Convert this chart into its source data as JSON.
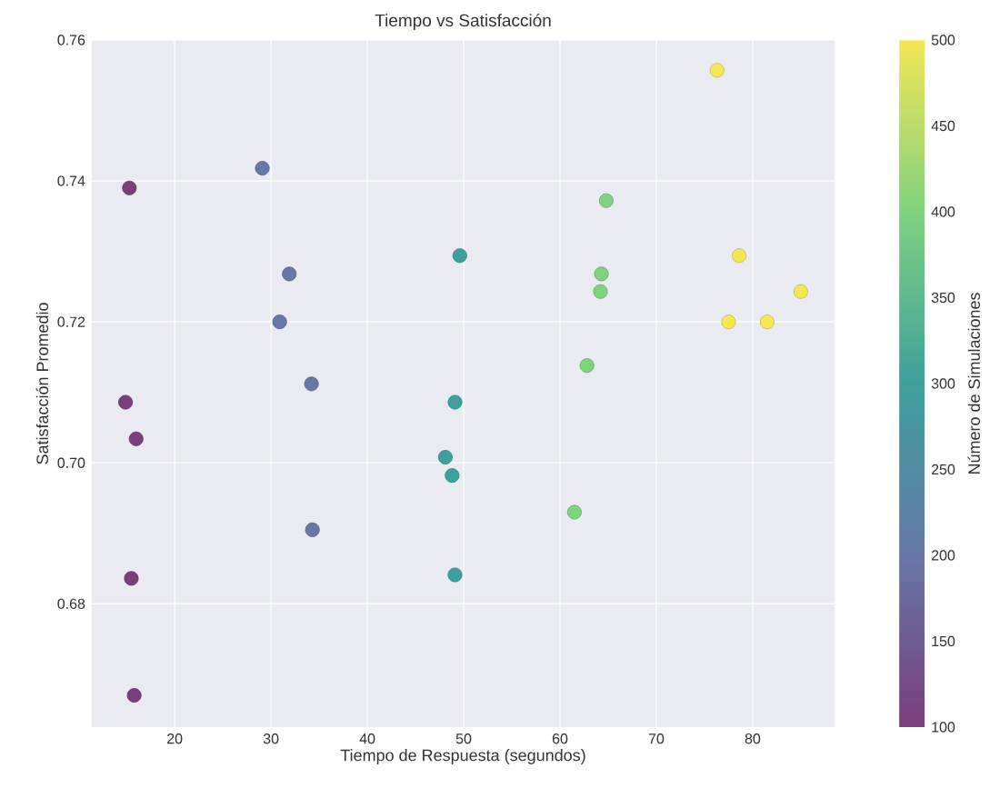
{
  "chart_data": {
    "type": "scatter",
    "title": "Tiempo vs Satisfacción",
    "xlabel": "Tiempo de Respuesta (segundos)",
    "ylabel": "Satisfacción Promedio",
    "clabel": "Número de Simulaciones",
    "x": [
      15.3,
      14.9,
      16.0,
      15.5,
      15.8,
      29.1,
      31.9,
      30.9,
      34.2,
      34.3,
      49.6,
      49.1,
      48.1,
      48.8,
      49.1,
      64.8,
      64.3,
      64.2,
      62.8,
      61.5,
      76.3,
      78.6,
      85.0,
      77.5,
      81.5
    ],
    "values": [
      0.739,
      0.7086,
      0.7034,
      0.6836,
      0.667,
      0.7418,
      0.7268,
      0.72,
      0.7112,
      0.6905,
      0.7294,
      0.7086,
      0.7008,
      0.6982,
      0.6841,
      0.7372,
      0.7268,
      0.7243,
      0.7138,
      0.693,
      0.7557,
      0.7294,
      0.7243,
      0.72,
      0.72
    ],
    "cvalues": [
      100,
      100,
      100,
      100,
      100,
      200,
      200,
      200,
      200,
      200,
      300,
      300,
      300,
      300,
      300,
      400,
      400,
      400,
      400,
      400,
      500,
      500,
      500,
      500,
      500
    ],
    "xlim": [
      11.4,
      88.5
    ],
    "ylim": [
      0.6625,
      0.76
    ],
    "xticks": [
      20,
      30,
      40,
      50,
      60,
      70,
      80
    ],
    "yticks": [
      0.68,
      {
        "value": 0.7,
        "label": "0.70"
      },
      0.72,
      0.74,
      0.76
    ],
    "clim": [
      100,
      500
    ],
    "cticks": [
      100,
      150,
      200,
      250,
      300,
      350,
      400,
      450,
      500
    ],
    "grid": true,
    "marker": "circle"
  }
}
